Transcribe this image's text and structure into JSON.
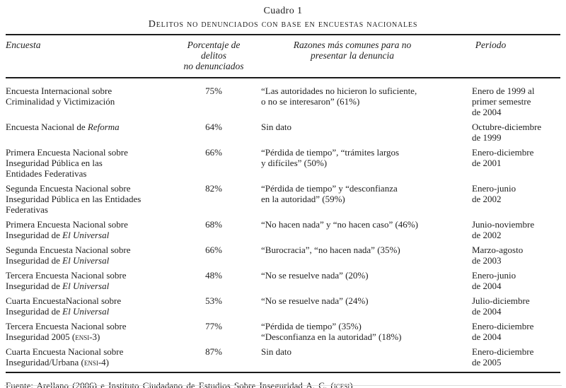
{
  "title": {
    "kicker": "Cuadro 1",
    "heading": "Delitos no denunciados con base en encuestas nacionales"
  },
  "columns": {
    "encuesta": "Encuesta",
    "porcentaje": "Porcentaje de delitos\nno denunciados",
    "razones": "Razones más comunes para no\npresentar la denuncia",
    "periodo": "Periodo"
  },
  "rows": [
    {
      "name": [
        {
          "t": "Encuesta Internacional sobre\nCriminalidad y Victimización"
        }
      ],
      "pct": "75%",
      "reason": [
        {
          "t": "“Las autoridades no hicieron lo suficiente,\no no se interesaron” (61%)"
        }
      ],
      "period": "Enero de 1999 al\nprimer semestre\nde 2004"
    },
    {
      "name": [
        {
          "t": "Encuesta Nacional de "
        },
        {
          "t": "Reforma",
          "s": "it"
        }
      ],
      "pct": "64%",
      "reason": [
        {
          "t": "Sin dato"
        }
      ],
      "period": "Octubre-diciembre\nde 1999"
    },
    {
      "name": [
        {
          "t": "Primera Encuesta Nacional sobre\nInseguridad Pública en las\nEntidades Federativas"
        }
      ],
      "pct": "66%",
      "reason": [
        {
          "t": "“Pérdida de tiempo”, “trámites largos\ny difíciles” (50%)"
        }
      ],
      "period": "Enero-diciembre\nde 2001"
    },
    {
      "name": [
        {
          "t": "Segunda Encuesta Nacional sobre\nInseguridad Pública en las Entidades\nFederativas"
        }
      ],
      "pct": "82%",
      "reason": [
        {
          "t": "“Pérdida de tiempo” y “desconfianza\nen la autoridad” (59%)"
        }
      ],
      "period": "Enero-junio\nde 2002"
    },
    {
      "name": [
        {
          "t": "Primera Encuesta Nacional sobre\nInseguridad de "
        },
        {
          "t": "El Universal",
          "s": "it"
        }
      ],
      "pct": "68%",
      "reason": [
        {
          "t": "“No hacen nada” y “no hacen caso” (46%)"
        }
      ],
      "period": "Junio-noviembre\nde 2002"
    },
    {
      "name": [
        {
          "t": "Segunda Encuesta Nacional sobre\nInseguridad de "
        },
        {
          "t": "El Universal",
          "s": "it"
        }
      ],
      "pct": "66%",
      "reason": [
        {
          "t": "“Burocracia”, “no hacen nada” (35%)"
        }
      ],
      "period": "Marzo-agosto\nde 2003"
    },
    {
      "name": [
        {
          "t": "Tercera Encuesta Nacional sobre\nInseguridad de "
        },
        {
          "t": "El Universal",
          "s": "it"
        }
      ],
      "pct": "48%",
      "reason": [
        {
          "t": "“No se resuelve nada” (20%)"
        }
      ],
      "period": "Enero-junio\nde 2004"
    },
    {
      "name": [
        {
          "t": "Cuarta EncuestaNacional sobre\nInseguridad de "
        },
        {
          "t": "El Universal",
          "s": "it"
        }
      ],
      "pct": "53%",
      "reason": [
        {
          "t": "“No se resuelve nada” (24%)"
        }
      ],
      "period": "Julio-diciembre\nde 2004"
    },
    {
      "name": [
        {
          "t": "Tercera Encuesta Nacional sobre\nInseguridad 2005 ("
        },
        {
          "t": "ensi-3",
          "s": "sc"
        },
        {
          "t": ")"
        }
      ],
      "pct": "77%",
      "reason": [
        {
          "t": "“Pérdida de tiempo” (35%)\n“Desconfianza en la autoridad” (18%)"
        }
      ],
      "period": "Enero-diciembre\nde 2004"
    },
    {
      "name": [
        {
          "t": "Cuarta Encuesta Nacional sobre\nInseguridad/Urbana ("
        },
        {
          "t": "ensi-4",
          "s": "sc"
        },
        {
          "t": ")"
        }
      ],
      "pct": "87%",
      "reason": [
        {
          "t": "Sin dato"
        }
      ],
      "period": "Enero-diciembre\nde 2005"
    }
  ],
  "source": [
    {
      "t": "Fuente: Arellano (2006) e Instituto Ciudadano de Estudios Sobre Inseguridad A. C. ("
    },
    {
      "t": "icesi",
      "s": "sc"
    },
    {
      "t": ")"
    }
  ]
}
